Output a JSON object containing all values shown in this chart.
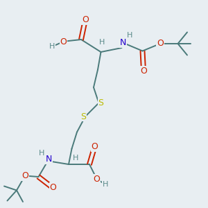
{
  "background_color": "#e8eef2",
  "bond_color": "#4a7a7a",
  "oxygen_color": "#cc2200",
  "nitrogen_color": "#2200cc",
  "sulfur_color": "#bbbb00",
  "hydrogen_color": "#5a8a8a",
  "figsize": [
    3.0,
    3.0
  ],
  "dpi": 100,
  "xlim": [
    0,
    10
  ],
  "ylim": [
    0,
    10
  ]
}
